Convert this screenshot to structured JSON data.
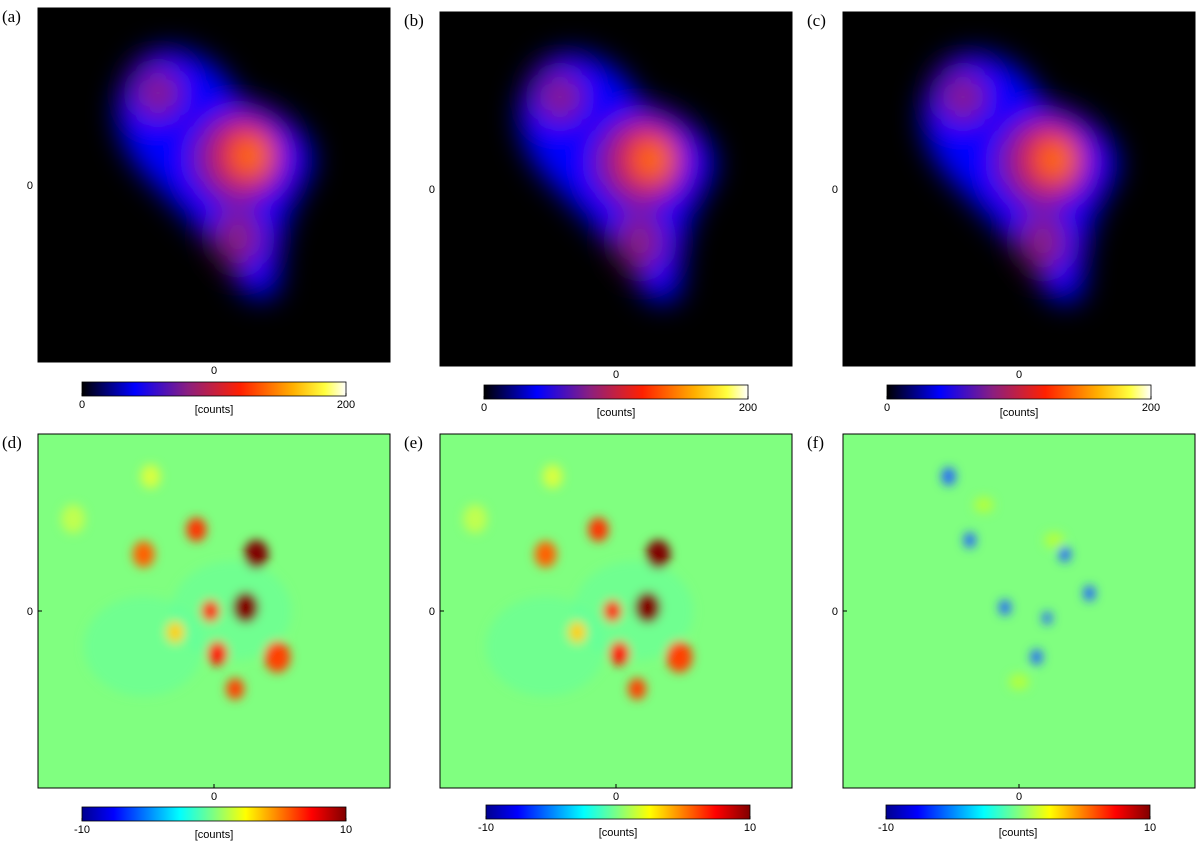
{
  "panels": [
    {
      "label": "(a)",
      "xticks": [
        0
      ],
      "yticks": [
        0
      ],
      "colorbar": {
        "lim": [
          0,
          200
        ],
        "ticks": [
          0,
          200
        ],
        "label": "[counts]"
      }
    },
    {
      "label": "(b)",
      "xticks": [
        0
      ],
      "yticks": [
        0
      ],
      "colorbar": {
        "lim": [
          0,
          200
        ],
        "ticks": [
          0,
          200
        ],
        "label": "[counts]"
      }
    },
    {
      "label": "(c)",
      "xticks": [
        0
      ],
      "yticks": [
        0
      ],
      "colorbar": {
        "lim": [
          0,
          200
        ],
        "ticks": [
          0,
          200
        ],
        "label": "[counts]"
      }
    },
    {
      "label": "(d)",
      "xticks": [
        0
      ],
      "yticks": [
        0
      ],
      "colorbar": {
        "lim": [
          -10,
          10
        ],
        "ticks": [
          -10,
          10
        ],
        "label": "[counts]"
      }
    },
    {
      "label": "(e)",
      "xticks": [
        0
      ],
      "yticks": [
        0
      ],
      "colorbar": {
        "lim": [
          -10,
          10
        ],
        "ticks": [
          -10,
          10
        ],
        "label": "[counts]"
      }
    },
    {
      "label": "(f)",
      "xticks": [
        0
      ],
      "yticks": [
        0
      ],
      "colorbar": {
        "lim": [
          -10,
          10
        ],
        "ticks": [
          -10,
          10
        ],
        "label": "[counts]"
      }
    }
  ]
}
